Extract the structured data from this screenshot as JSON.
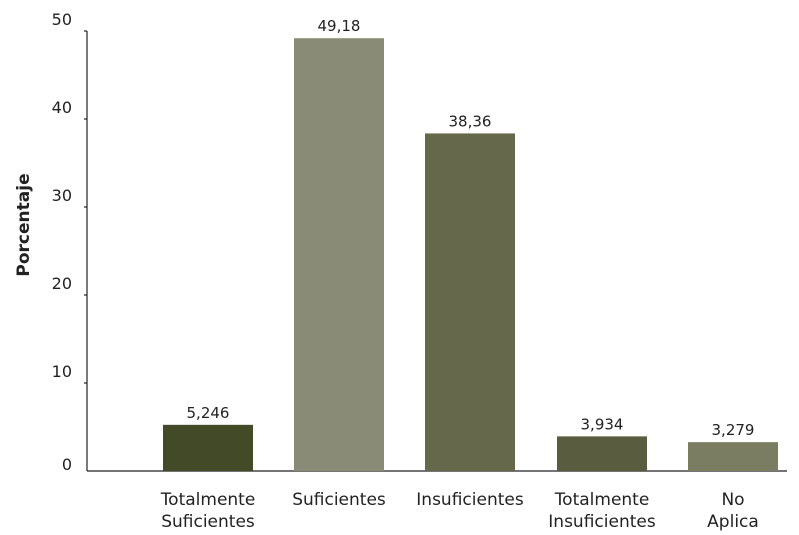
{
  "chart_data": {
    "type": "bar",
    "title": "",
    "xlabel": "",
    "ylabel": "Porcentaje",
    "ylim": [
      0,
      50
    ],
    "yticks": [
      0,
      10,
      20,
      30,
      40,
      50
    ],
    "grid": false,
    "categories": [
      [
        "Totalmente",
        "Suficientes"
      ],
      [
        "Suficientes"
      ],
      [
        "Insuficientes"
      ],
      [
        "Totalmente",
        "Insuficientes"
      ],
      [
        "No",
        "Aplica"
      ]
    ],
    "values": [
      5.246,
      49.18,
      38.36,
      3.934,
      3.279
    ],
    "value_labels": [
      "5,246",
      "49,18",
      "38,36",
      "3,934",
      "3,279"
    ],
    "colors": [
      "#434a28",
      "#898b76",
      "#65684a",
      "#595c3f",
      "#7b7d63"
    ]
  }
}
